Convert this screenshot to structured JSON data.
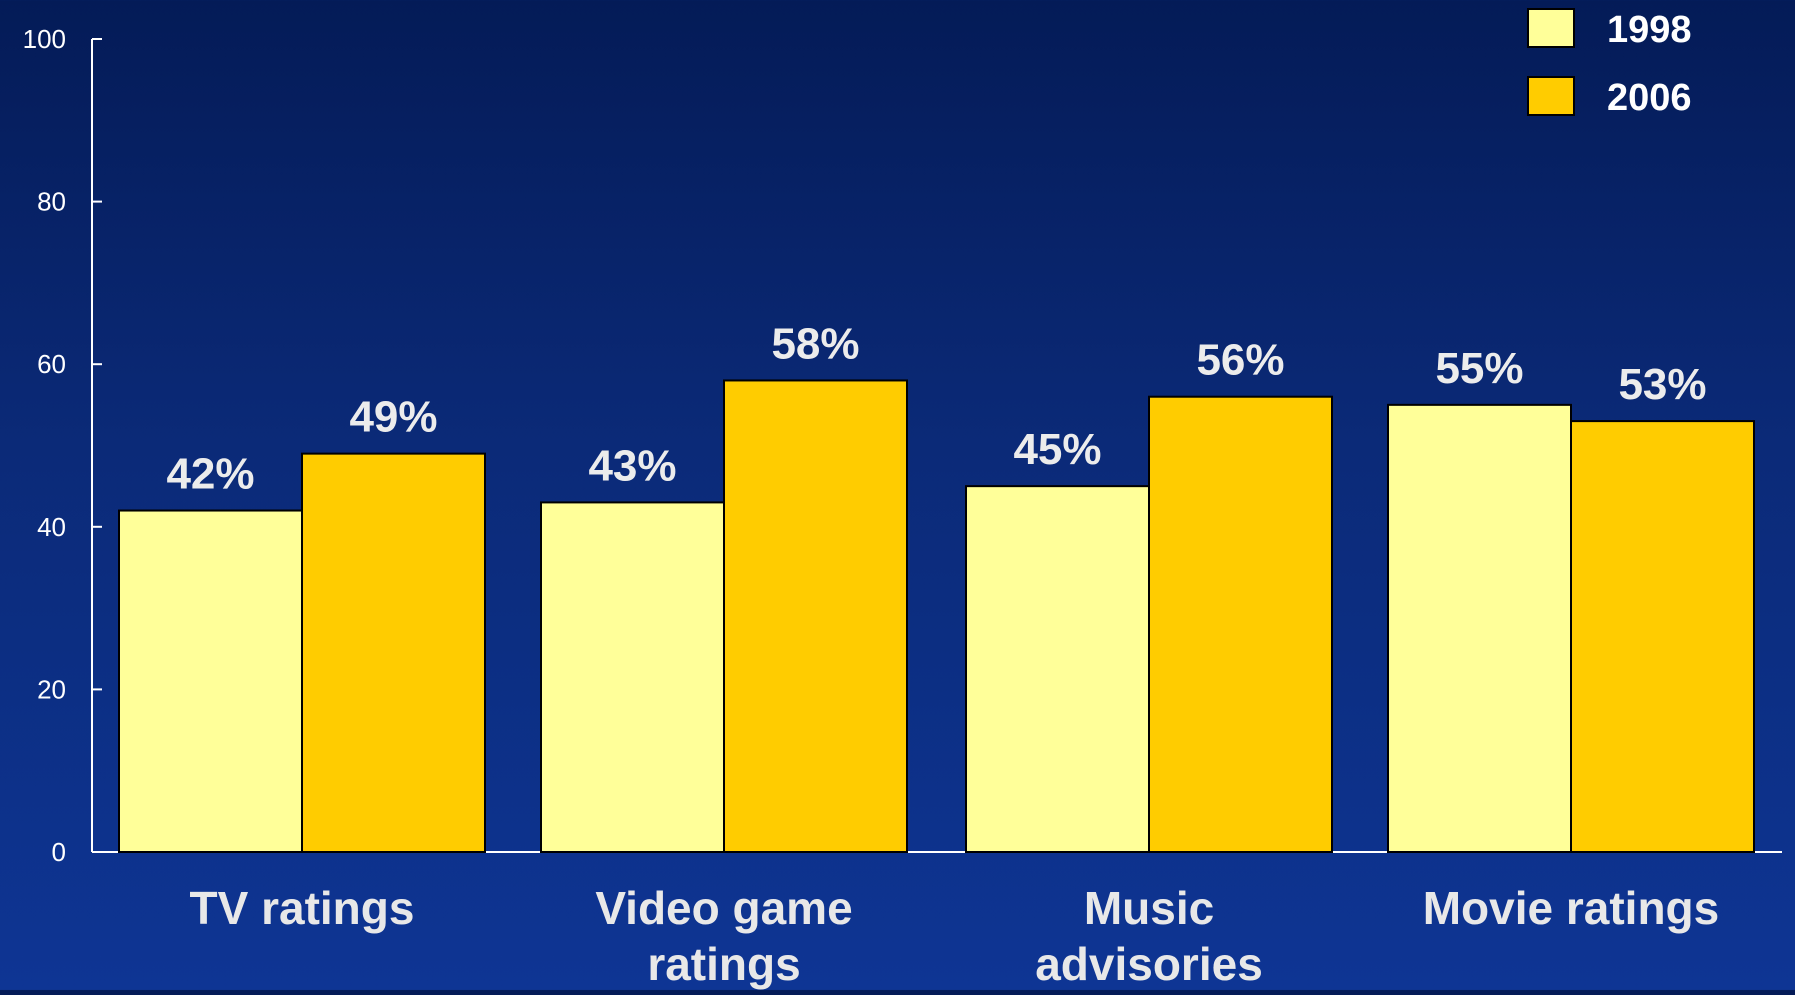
{
  "chart_data": {
    "type": "bar",
    "categories": [
      [
        "TV ratings"
      ],
      [
        "Video game",
        "ratings"
      ],
      [
        "Music",
        "advisories"
      ],
      [
        "Movie ratings"
      ]
    ],
    "series": [
      {
        "name": "1998",
        "color": "#ffff99",
        "values": [
          42,
          43,
          45,
          55
        ],
        "labels": [
          "42%",
          "43%",
          "45%",
          "55%"
        ]
      },
      {
        "name": "2006",
        "color": "#ffcc00",
        "values": [
          49,
          58,
          56,
          53
        ],
        "labels": [
          "49%",
          "58%",
          "56%",
          "53%"
        ]
      }
    ],
    "ylim": [
      0,
      100
    ],
    "yticks": [
      "0",
      "20",
      "40",
      "60",
      "80",
      "100"
    ],
    "grid": false,
    "legend_position": "top-right",
    "axis_color": "#ffffff",
    "bar_outline_color": "#000000"
  }
}
